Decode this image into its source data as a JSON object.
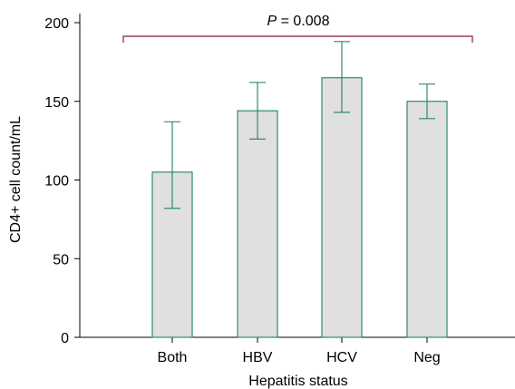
{
  "chart_data": {
    "type": "bar",
    "categories": [
      "Both",
      "HBV",
      "HCV",
      "Neg"
    ],
    "values": [
      105,
      144,
      165,
      150
    ],
    "error_bars": [
      {
        "low": 82,
        "high": 137
      },
      {
        "low": 126,
        "high": 162
      },
      {
        "low": 143,
        "high": 188
      },
      {
        "low": 139,
        "high": 161
      }
    ],
    "xlabel": "Hepatitis status",
    "ylabel": "CD4+ cell count/mL",
    "ylim": [
      0,
      200
    ],
    "yticks": [
      0,
      50,
      100,
      150,
      200
    ],
    "grid": false,
    "annotation": {
      "p_symbol": "P",
      "p_text": " = 0.008",
      "bracket_from": "Both",
      "bracket_to": "Neg"
    },
    "colors": {
      "bar_fill": "#e0e0e0",
      "bar_stroke": "#2e8b6e",
      "error_bar": "#2e8b6e",
      "bracket": "#8b1a2b",
      "axis": "#000000"
    }
  }
}
